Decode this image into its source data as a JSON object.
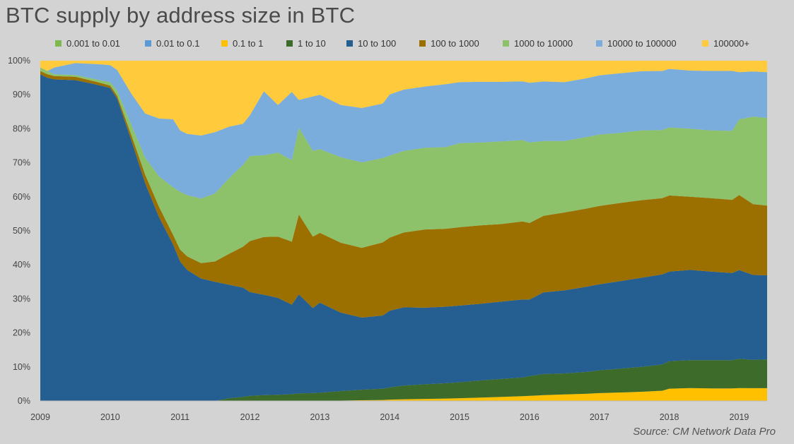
{
  "title": "BTC supply by address size in BTC",
  "source": "Source: CM Network Data Pro",
  "colors": {
    "background": "#d3d3d3",
    "0.001 to 0.01": "#7fb84e",
    "0.01 to 0.1": "#5b9bd5",
    "0.1 to 1": "#ffc000",
    "1 to 10": "#3d6b2a",
    "10 to 100": "#255e91",
    "100 to 1000": "#9c7000",
    "1000 to 10000": "#8dc26b",
    "10000 to 100000": "#7aaddc",
    "100000+": "#ffcb3d"
  },
  "chart_data": {
    "type": "area",
    "stacked": true,
    "percent": true,
    "title": "BTC supply by address size in BTC",
    "x": [
      2009.0,
      2009.1,
      2009.2,
      2009.5,
      2009.8,
      2010.0,
      2010.1,
      2010.3,
      2010.5,
      2010.7,
      2010.9,
      2011.0,
      2011.1,
      2011.3,
      2011.5,
      2011.7,
      2011.9,
      2012.0,
      2012.2,
      2012.4,
      2012.6,
      2012.7,
      2012.9,
      2013.0,
      2013.3,
      2013.6,
      2013.9,
      2014.0,
      2014.2,
      2014.5,
      2014.8,
      2015.0,
      2015.3,
      2015.6,
      2015.9,
      2016.0,
      2016.2,
      2016.5,
      2016.8,
      2017.0,
      2017.3,
      2017.6,
      2017.9,
      2018.0,
      2018.3,
      2018.6,
      2018.9,
      2019.0,
      2019.2,
      2019.4
    ],
    "x_ticks": [
      "2009",
      "2010",
      "2011",
      "2012",
      "2013",
      "2014",
      "2015",
      "2016",
      "2017",
      "2018",
      "2019"
    ],
    "xlim": [
      2009,
      2019.4
    ],
    "ylim": [
      0,
      100
    ],
    "y_ticks": [
      "0%",
      "10%",
      "20%",
      "30%",
      "40%",
      "50%",
      "60%",
      "70%",
      "80%",
      "90%",
      "100%"
    ],
    "series": [
      {
        "name": "0.001 to 0.01",
        "values": [
          0,
          0,
          0,
          0,
          0,
          0,
          0,
          0,
          0,
          0,
          0,
          0,
          0,
          0,
          0,
          0,
          0,
          0,
          0,
          0,
          0,
          0,
          0,
          0,
          0,
          0,
          0,
          0,
          0,
          0,
          0,
          0,
          0,
          0,
          0,
          0,
          0,
          0,
          0,
          0,
          0,
          0,
          0,
          0,
          0,
          0,
          0,
          0,
          0,
          0
        ]
      },
      {
        "name": "0.01 to 0.1",
        "values": [
          0,
          0,
          0,
          0,
          0,
          0,
          0,
          0,
          0,
          0,
          0,
          0,
          0,
          0,
          0,
          0,
          0,
          0,
          0,
          0,
          0,
          0,
          0,
          0,
          0,
          0,
          0,
          0,
          0,
          0,
          0,
          0,
          0,
          0,
          0,
          0,
          0,
          0,
          0,
          0,
          0,
          0,
          0,
          0,
          0,
          0,
          0,
          0,
          0,
          0
        ]
      },
      {
        "name": "0.1 to 1",
        "values": [
          0,
          0,
          0,
          0,
          0,
          0,
          0,
          0,
          0,
          0,
          0,
          0,
          0,
          0,
          0,
          0,
          0,
          0,
          0,
          0,
          0,
          0,
          0,
          0,
          0.1,
          0.2,
          0.3,
          0.4,
          0.5,
          0.6,
          0.7,
          0.8,
          1.0,
          1.2,
          1.4,
          1.5,
          1.7,
          1.9,
          2.1,
          2.3,
          2.5,
          2.7,
          3.0,
          3.6,
          3.8,
          3.7,
          3.7,
          3.7,
          3.8,
          3.8
        ]
      },
      {
        "name": "1 to 10",
        "values": [
          0,
          0,
          0,
          0,
          0,
          0,
          0,
          0,
          0,
          0,
          0,
          0,
          0,
          0,
          0,
          0.8,
          1.2,
          1.5,
          1.7,
          1.8,
          2.0,
          2.2,
          2.3,
          2.4,
          2.8,
          3.1,
          3.3,
          3.6,
          4.0,
          4.3,
          4.5,
          4.7,
          5.0,
          5.3,
          5.5,
          5.8,
          6.2,
          6.2,
          6.4,
          6.7,
          7.0,
          7.3,
          7.7,
          8.1,
          8.2,
          8.3,
          8.3,
          8.4,
          8.4,
          8.5
        ]
      },
      {
        "name": "10 to 100",
        "values": [
          96,
          95,
          94.5,
          94.3,
          93,
          92,
          88,
          76,
          64,
          54,
          46,
          41,
          38.5,
          36,
          35,
          33,
          32,
          30.5,
          29.5,
          28.5,
          26.3,
          28.5,
          25,
          26.5,
          23,
          21.2,
          21.5,
          22.5,
          23,
          22.5,
          22.5,
          22.5,
          22.5,
          22.7,
          23,
          22.5,
          24,
          24.4,
          25,
          25.3,
          25.7,
          26.2,
          26.5,
          26.3,
          26.5,
          26,
          25.6,
          25.4,
          25.2,
          25
        ]
      },
      {
        "name": "100 to 1000",
        "values": [
          1,
          1,
          1,
          1,
          0.8,
          0.7,
          0.8,
          1.5,
          2.5,
          3,
          2.8,
          3.5,
          4,
          4.5,
          6,
          9,
          12,
          15,
          17,
          18,
          18.5,
          23,
          21,
          20.5,
          20.5,
          20.5,
          21.5,
          21.5,
          22,
          23,
          22.9,
          23,
          23,
          22.8,
          23,
          22.5,
          22.5,
          22.9,
          23,
          23,
          23,
          22.8,
          22.4,
          22.4,
          21.5,
          21.6,
          21.5,
          21.5,
          21,
          20.7
        ]
      },
      {
        "name": "1000 to 10000",
        "values": [
          1,
          1,
          0.5,
          0.5,
          0.7,
          1,
          1.5,
          3,
          5,
          9,
          14,
          17,
          18,
          19,
          20,
          22,
          24,
          25,
          24,
          24.7,
          24,
          25,
          25.2,
          24.6,
          25.1,
          25.1,
          24.8,
          24.1,
          24,
          24,
          24,
          24.7,
          24.3,
          24.3,
          24,
          23.7,
          22,
          21,
          21,
          21,
          20.6,
          20.5,
          20,
          20,
          20,
          19.9,
          20.3,
          21.7,
          26,
          26
        ]
      },
      {
        "name": "10000 to 100000",
        "values": [
          0,
          0,
          2,
          3.5,
          4.5,
          5,
          6,
          9,
          13,
          17,
          20,
          18,
          18,
          18.5,
          18,
          15,
          12,
          12,
          18.8,
          14,
          20,
          8,
          16,
          16,
          15.3,
          16,
          16,
          18,
          18,
          18,
          18.5,
          17.9,
          17.8,
          17.5,
          17.3,
          17.5,
          17.5,
          17.3,
          17.3,
          17.4,
          17.5,
          17.4,
          17.4,
          17.2,
          17.1,
          17.5,
          17.6,
          13.5,
          13.4,
          13.6
        ]
      },
      {
        "name": "100000+",
        "values": [
          2,
          3,
          2,
          0.7,
          1,
          1.3,
          2.7,
          9.5,
          15.5,
          17,
          17.2,
          20.5,
          21.5,
          22,
          21,
          19.2,
          18.5,
          16,
          9,
          13,
          9.2,
          11.3,
          10.5,
          10,
          13,
          13.9,
          12.6,
          9.9,
          8.5,
          7.6,
          6.9,
          6.3,
          6.2,
          6.2,
          6.1,
          6.5,
          6.1,
          6.3,
          5.2,
          4.3,
          3.7,
          3.1,
          3,
          2.4,
          2.9,
          3,
          3,
          3.3,
          3.2,
          3.4
        ]
      }
    ]
  }
}
